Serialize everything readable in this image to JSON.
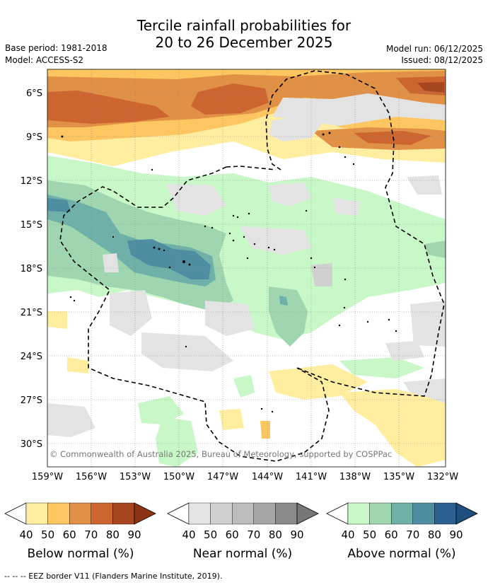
{
  "header": {
    "title_line1": "Tercile rainfall probabilities for",
    "title_line2": "20 to 26 December 2025",
    "base_period": "Base period: 1981-2018",
    "model": "Model: ACCESS-S2",
    "model_run": "Model run: 06/12/2025",
    "issued": "Issued: 08/12/2025"
  },
  "map": {
    "lat_labels": [
      "6°S",
      "9°S",
      "12°S",
      "15°S",
      "18°S",
      "21°S",
      "24°S",
      "27°S",
      "30°S"
    ],
    "lon_labels": [
      "159°W",
      "156°W",
      "153°W",
      "150°W",
      "147°W",
      "144°W",
      "141°W",
      "138°W",
      "135°W",
      "132°W"
    ],
    "copyright": "© Commonwealth of Australia 2025, Bureau of Meteorology, supported by COSPPac"
  },
  "colors": {
    "below": [
      "#ffeda0",
      "#fec661",
      "#e09145",
      "#cc6530",
      "#a8461f"
    ],
    "near": [
      "#e3e3e3",
      "#d0d0d0",
      "#bdbdbd",
      "#a6a6a6",
      "#8a8a8a"
    ],
    "above": [
      "#c8f7c8",
      "#9fd6b0",
      "#6fb0a8",
      "#4e8ea0",
      "#2c5f92"
    ],
    "above_dark": "#1f4f7f",
    "below_dark": "#8b3415",
    "near_dark": "#777777"
  },
  "legend": {
    "ticks": [
      "40",
      "50",
      "60",
      "70",
      "80",
      "90"
    ],
    "below_label": "Below normal (%)",
    "near_label": "Near normal (%)",
    "above_label": "Above normal (%)"
  },
  "footer": "--  --  -- EEZ border V11 (Flanders Marine Institute, 2019)."
}
